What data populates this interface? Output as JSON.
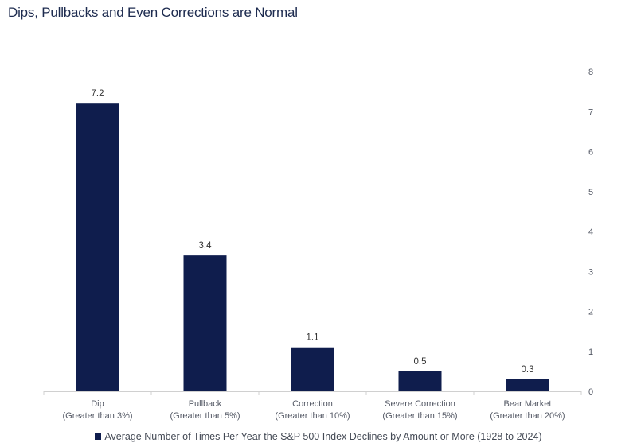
{
  "title": "Dips, Pullbacks and Even Corrections are Normal",
  "legend_label": "Average Number of Times Per Year the S&P 500 Index Declines by Amount or More (1928 to 2024)",
  "bar_color": "#0f1d4d",
  "chart_data": {
    "type": "bar",
    "title": "Dips, Pullbacks and Even Corrections are Normal",
    "categories": [
      [
        "Dip",
        "(Greater than 3%)"
      ],
      [
        "Pullback",
        "(Greater than 5%)"
      ],
      [
        "Correction",
        "(Greater than 10%)"
      ],
      [
        "Severe Correction",
        "(Greater than 15%)"
      ],
      [
        "Bear Market",
        "(Greater than 20%)"
      ]
    ],
    "series": [
      {
        "name": "Average Number of Times Per Year the S&P 500 Index Declines by Amount or More (1928 to 2024)",
        "values": [
          7.2,
          3.4,
          1.1,
          0.5,
          0.3
        ]
      }
    ],
    "data_labels": [
      "7.2",
      "3.4",
      "1.1",
      "0.5",
      "0.3"
    ],
    "ylim": [
      0,
      8
    ],
    "yticks": [
      0,
      1,
      2,
      3,
      4,
      5,
      6,
      7,
      8
    ],
    "y_axis_position": "right",
    "grid": false,
    "legend_position": "bottom"
  }
}
